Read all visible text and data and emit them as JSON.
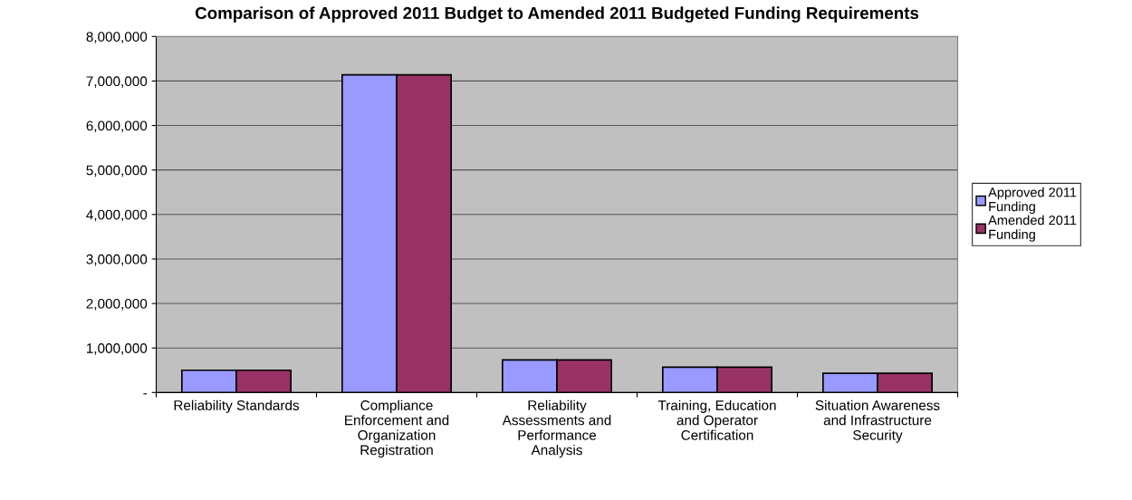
{
  "chart_data": {
    "type": "bar",
    "title": "Comparison of Approved 2011 Budget to Amended 2011 Budgeted Funding Requirements",
    "categories": [
      "Reliability Standards",
      "Compliance\nEnforcement and\nOrganization\nRegistration",
      "Reliability\nAssessments and\nPerformance\nAnalysis",
      "Training, Education\nand Operator\nCertification",
      "Situation Awareness\nand Infrastructure\nSecurity"
    ],
    "series": [
      {
        "name": "Approved 2011\nFunding",
        "color": "#9999ff",
        "values": [
          500000,
          7140000,
          730000,
          570000,
          430000
        ]
      },
      {
        "name": "Amended 2011\nFunding",
        "color": "#993366",
        "values": [
          500000,
          7140000,
          730000,
          570000,
          430000
        ]
      }
    ],
    "ylim": [
      0,
      8000000
    ],
    "yticks": [
      {
        "value": 0,
        "label": "-"
      },
      {
        "value": 1000000,
        "label": "1,000,000"
      },
      {
        "value": 2000000,
        "label": "2,000,000"
      },
      {
        "value": 3000000,
        "label": "3,000,000"
      },
      {
        "value": 4000000,
        "label": "4,000,000"
      },
      {
        "value": 5000000,
        "label": "5,000,000"
      },
      {
        "value": 6000000,
        "label": "6,000,000"
      },
      {
        "value": 7000000,
        "label": "7,000,000"
      },
      {
        "value": 8000000,
        "label": "8,000,000"
      }
    ],
    "grid": "y",
    "legend": "right"
  }
}
